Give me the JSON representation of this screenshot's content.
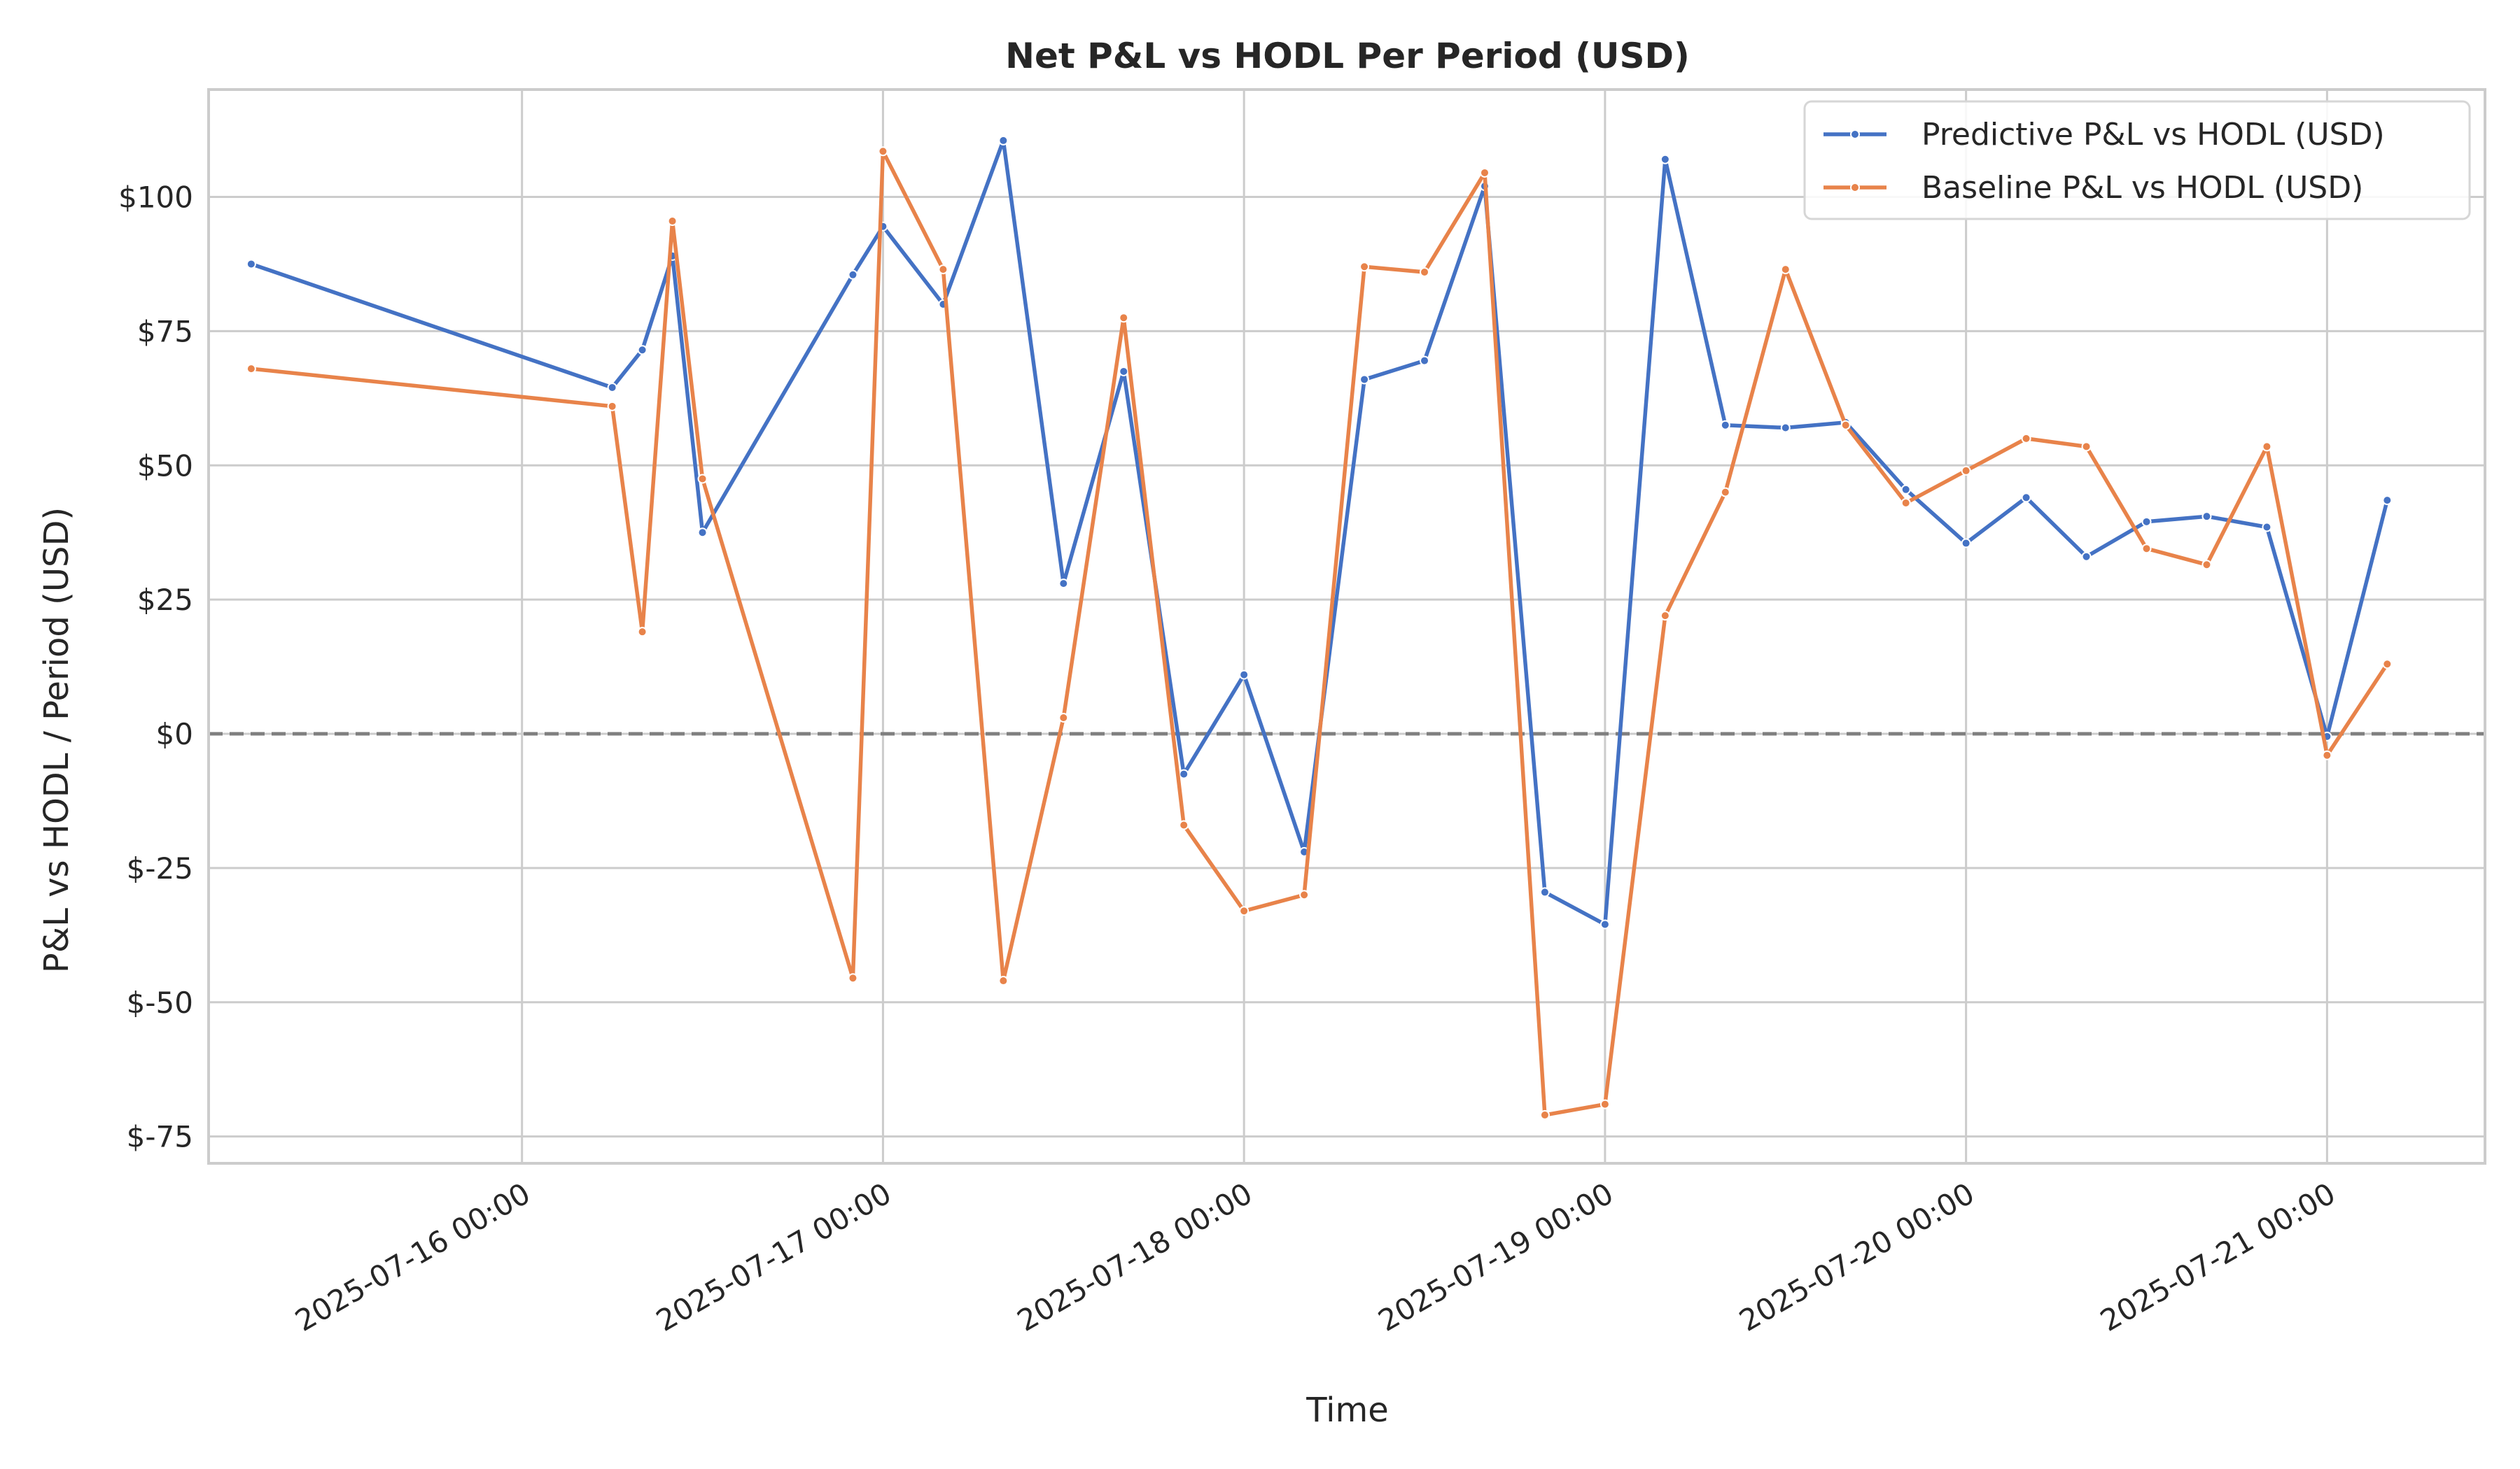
{
  "chart_data": {
    "type": "line",
    "title": "Net P&L vs HODL Per Period (USD)",
    "xlabel": "Time",
    "ylabel": "P&L vs HODL / Period (USD)",
    "ylim": [
      -80,
      120
    ],
    "y_ticks": [
      -75,
      -50,
      -25,
      0,
      25,
      50,
      75,
      100
    ],
    "y_tick_labels": [
      "$-75",
      "$-50",
      "$-25",
      "$0",
      "$25",
      "$50",
      "$75",
      "$100"
    ],
    "x_ticks": [
      "2025-07-16 00:00",
      "2025-07-17 00:00",
      "2025-07-18 00:00",
      "2025-07-19 00:00",
      "2025-07-20 00:00",
      "2025-07-21 00:00"
    ],
    "x_tick_labels": [
      "2025-07-16 00:00",
      "2025-07-17 00:00",
      "2025-07-18 00:00",
      "2025-07-19 00:00",
      "2025-07-20 00:00",
      "2025-07-21 00:00"
    ],
    "xlim": [
      "2025-07-15 03:10",
      "2025-07-21 10:30"
    ],
    "grid": true,
    "legend_position": "top-right",
    "reference_line": {
      "y": 0,
      "style": "dashed",
      "color": "#7f7f7f"
    },
    "series": [
      {
        "name": "Predictive P&L vs HODL (USD)",
        "color": "#4472c4",
        "points": [
          {
            "x": "2025-07-15 06:00",
            "y": 87.5
          },
          {
            "x": "2025-07-16 06:00",
            "y": 64.5
          },
          {
            "x": "2025-07-16 08:00",
            "y": 71.5
          },
          {
            "x": "2025-07-16 10:00",
            "y": 89.0
          },
          {
            "x": "2025-07-16 12:00",
            "y": 37.5
          },
          {
            "x": "2025-07-16 22:00",
            "y": 85.5
          },
          {
            "x": "2025-07-17 00:00",
            "y": 94.5
          },
          {
            "x": "2025-07-17 04:00",
            "y": 80.0
          },
          {
            "x": "2025-07-17 08:00",
            "y": 110.5
          },
          {
            "x": "2025-07-17 12:00",
            "y": 28.0
          },
          {
            "x": "2025-07-17 16:00",
            "y": 67.5
          },
          {
            "x": "2025-07-17 20:00",
            "y": -7.5
          },
          {
            "x": "2025-07-18 00:00",
            "y": 11.0
          },
          {
            "x": "2025-07-18 04:00",
            "y": -22.0
          },
          {
            "x": "2025-07-18 08:00",
            "y": 66.0
          },
          {
            "x": "2025-07-18 12:00",
            "y": 69.5
          },
          {
            "x": "2025-07-18 16:00",
            "y": 102.0
          },
          {
            "x": "2025-07-18 20:00",
            "y": -29.5
          },
          {
            "x": "2025-07-19 00:00",
            "y": -35.5
          },
          {
            "x": "2025-07-19 04:00",
            "y": 107.0
          },
          {
            "x": "2025-07-19 08:00",
            "y": 57.5
          },
          {
            "x": "2025-07-19 12:00",
            "y": 57.0
          },
          {
            "x": "2025-07-19 16:00",
            "y": 58.0
          },
          {
            "x": "2025-07-19 20:00",
            "y": 45.5
          },
          {
            "x": "2025-07-20 00:00",
            "y": 35.5
          },
          {
            "x": "2025-07-20 04:00",
            "y": 44.0
          },
          {
            "x": "2025-07-20 08:00",
            "y": 33.0
          },
          {
            "x": "2025-07-20 12:00",
            "y": 39.5
          },
          {
            "x": "2025-07-20 16:00",
            "y": 40.5
          },
          {
            "x": "2025-07-20 20:00",
            "y": 38.5
          },
          {
            "x": "2025-07-21 00:00",
            "y": -0.5
          },
          {
            "x": "2025-07-21 04:00",
            "y": 43.5
          }
        ]
      },
      {
        "name": "Baseline P&L vs HODL (USD)",
        "color": "#e8834a",
        "points": [
          {
            "x": "2025-07-15 06:00",
            "y": 68.0
          },
          {
            "x": "2025-07-16 06:00",
            "y": 61.0
          },
          {
            "x": "2025-07-16 08:00",
            "y": 19.0
          },
          {
            "x": "2025-07-16 10:00",
            "y": 95.5
          },
          {
            "x": "2025-07-16 12:00",
            "y": 47.5
          },
          {
            "x": "2025-07-16 22:00",
            "y": -45.5
          },
          {
            "x": "2025-07-17 00:00",
            "y": 108.5
          },
          {
            "x": "2025-07-17 04:00",
            "y": 86.5
          },
          {
            "x": "2025-07-17 08:00",
            "y": -46.0
          },
          {
            "x": "2025-07-17 12:00",
            "y": 3.0
          },
          {
            "x": "2025-07-17 16:00",
            "y": 77.5
          },
          {
            "x": "2025-07-17 20:00",
            "y": -17.0
          },
          {
            "x": "2025-07-18 00:00",
            "y": -33.0
          },
          {
            "x": "2025-07-18 04:00",
            "y": -30.0
          },
          {
            "x": "2025-07-18 08:00",
            "y": 87.0
          },
          {
            "x": "2025-07-18 12:00",
            "y": 86.0
          },
          {
            "x": "2025-07-18 16:00",
            "y": 104.5
          },
          {
            "x": "2025-07-18 20:00",
            "y": -71.0
          },
          {
            "x": "2025-07-19 00:00",
            "y": -69.0
          },
          {
            "x": "2025-07-19 04:00",
            "y": 22.0
          },
          {
            "x": "2025-07-19 08:00",
            "y": 45.0
          },
          {
            "x": "2025-07-19 12:00",
            "y": 86.5
          },
          {
            "x": "2025-07-19 16:00",
            "y": 57.5
          },
          {
            "x": "2025-07-19 20:00",
            "y": 43.0
          },
          {
            "x": "2025-07-20 00:00",
            "y": 49.0
          },
          {
            "x": "2025-07-20 04:00",
            "y": 55.0
          },
          {
            "x": "2025-07-20 08:00",
            "y": 53.5
          },
          {
            "x": "2025-07-20 12:00",
            "y": 34.5
          },
          {
            "x": "2025-07-20 16:00",
            "y": 31.5
          },
          {
            "x": "2025-07-20 20:00",
            "y": 53.5
          },
          {
            "x": "2025-07-21 00:00",
            "y": -4.0
          },
          {
            "x": "2025-07-21 04:00",
            "y": 13.0
          }
        ]
      }
    ]
  }
}
